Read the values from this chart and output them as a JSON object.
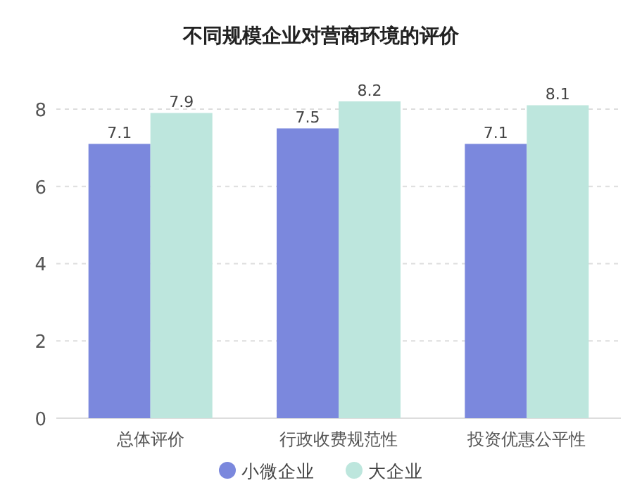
{
  "chart_data": {
    "type": "bar",
    "title": "不同规模企业对营商环境的评价",
    "categories": [
      "总体评价",
      "行政收费规范性",
      "投资优惠公平性"
    ],
    "series": [
      {
        "name": "小微企业",
        "color": "#7b88dd",
        "values": [
          7.1,
          7.5,
          7.1
        ]
      },
      {
        "name": "大企业",
        "color": "#bde6dd",
        "values": [
          7.9,
          8.2,
          8.1
        ]
      }
    ],
    "ylim": [
      0,
      8.2
    ],
    "yticks": [
      0,
      2,
      4,
      6,
      8
    ],
    "grid": "y",
    "legend": "bottom",
    "data_labels": true
  }
}
